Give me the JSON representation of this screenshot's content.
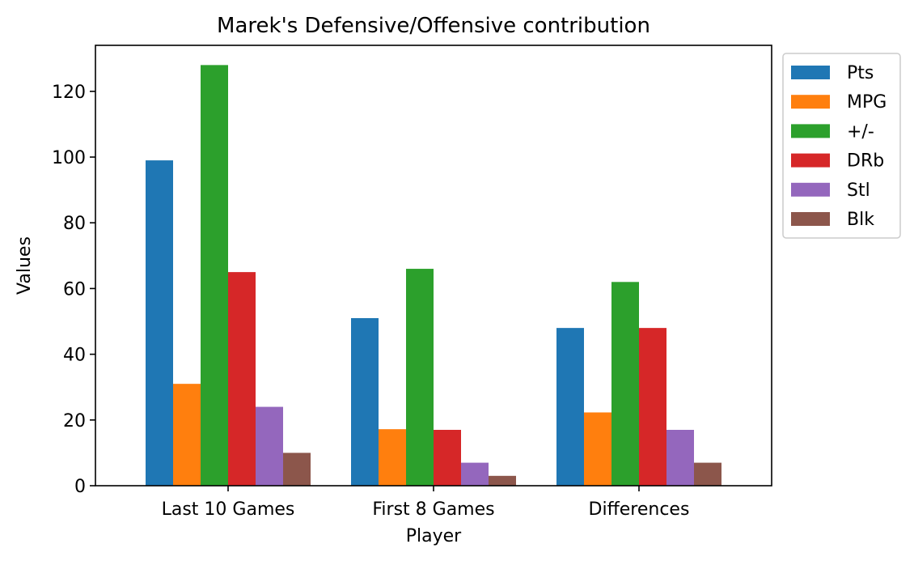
{
  "chart_data": {
    "type": "bar",
    "title": "Marek's Defensive/Offensive contribution",
    "xlabel": "Player",
    "ylabel": "Values",
    "categories": [
      "Last 10 Games",
      "First 8 Games",
      "Differences"
    ],
    "ylim": [
      0,
      134
    ],
    "yticks": [
      0,
      20,
      40,
      60,
      80,
      100,
      120
    ],
    "grid": false,
    "legend_position": "outside-top-right",
    "series": [
      {
        "name": "Pts",
        "color": "#1f77b4",
        "values": [
          99,
          51,
          48
        ]
      },
      {
        "name": "MPG",
        "color": "#ff7f0e",
        "values": [
          31,
          17.2,
          22.3
        ]
      },
      {
        "name": "+/-",
        "color": "#2ca02c",
        "values": [
          128,
          66,
          62
        ]
      },
      {
        "name": "DRb",
        "color": "#d62728",
        "values": [
          65,
          17,
          48
        ]
      },
      {
        "name": "Stl",
        "color": "#9467bd",
        "values": [
          24,
          7,
          17
        ]
      },
      {
        "name": "Blk",
        "color": "#8c564b",
        "values": [
          10,
          3,
          7
        ]
      }
    ]
  }
}
